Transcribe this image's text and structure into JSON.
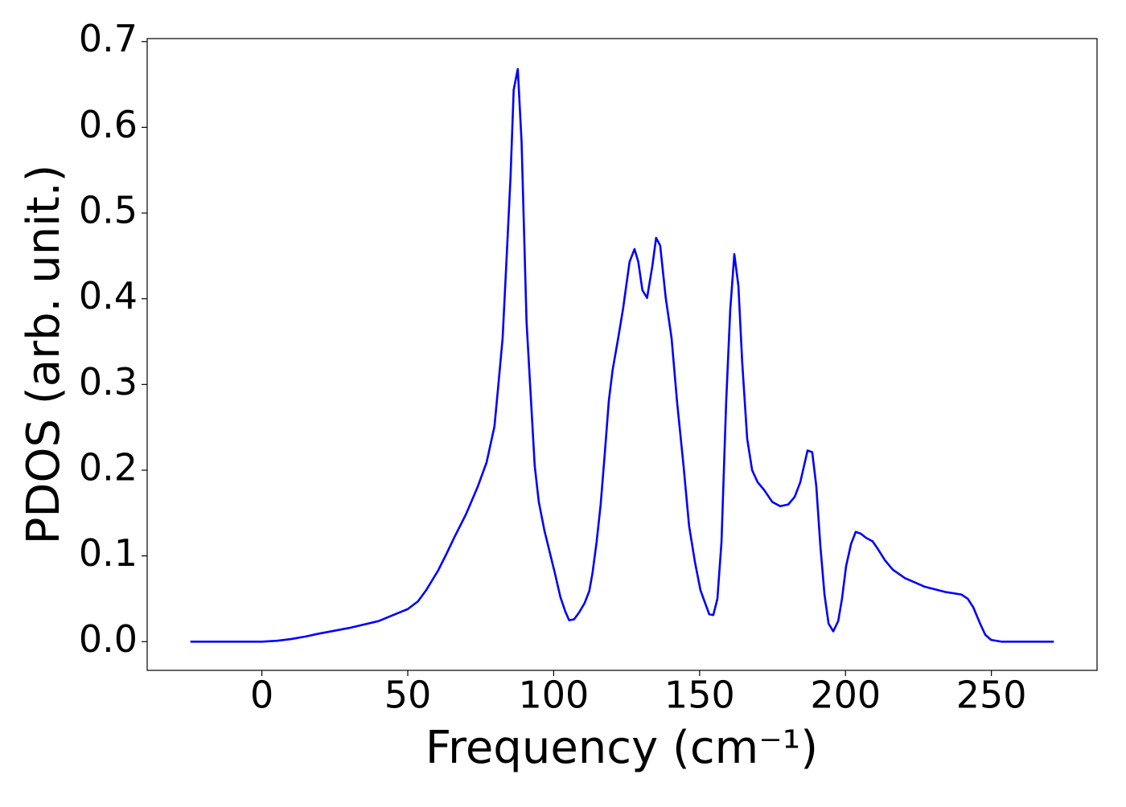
{
  "chart_data": {
    "type": "line",
    "xlabel": "Frequency (cm⁻¹)",
    "ylabel": "PDOS (arb. unit.)",
    "x": [
      -24.5,
      0,
      5.2,
      10,
      15,
      19,
      30,
      40,
      45,
      50,
      53.5,
      56.3,
      60.4,
      63.2,
      66,
      70,
      74,
      77,
      79.7,
      81,
      82.5,
      83.8,
      85.2,
      86.3,
      87.7,
      89,
      90.7,
      92.1,
      93.5,
      94.9,
      96.8,
      100.4,
      102.3,
      104,
      105.3,
      107,
      108.7,
      110.6,
      112.2,
      113.3,
      114.7,
      116.1,
      117.5,
      118.9,
      120.2,
      122.2,
      123.8,
      126,
      127.7,
      129,
      130.4,
      132,
      133.8,
      135.1,
      136.5,
      138.4,
      140.4,
      142.3,
      144.5,
      146.4,
      148.4,
      150.3,
      152,
      153.3,
      154.7,
      156.1,
      157.5,
      159.1,
      160.5,
      161.9,
      163.3,
      164.6,
      166.3,
      168,
      169.9,
      172.1,
      174.9,
      177.6,
      180.4,
      182.6,
      184.5,
      187,
      188.6,
      190,
      191.4,
      192.8,
      194.2,
      195.8,
      197.5,
      198.8,
      200.2,
      201.9,
      203.5,
      205.2,
      207.1,
      209.3,
      211.3,
      213.5,
      216.2,
      220.4,
      227.2,
      234.1,
      239.7,
      241.9,
      243.8,
      246,
      247.9,
      249.9,
      253.4,
      271.4
    ],
    "series": [
      {
        "color": "#0000ff",
        "values": [
          0,
          0,
          0.001,
          0.003,
          0.006,
          0.009,
          0.016,
          0.024,
          0.031,
          0.038,
          0.047,
          0.06,
          0.083,
          0.102,
          0.122,
          0.149,
          0.181,
          0.209,
          0.251,
          0.298,
          0.354,
          0.443,
          0.541,
          0.644,
          0.668,
          0.583,
          0.373,
          0.289,
          0.205,
          0.163,
          0.13,
          0.08,
          0.052,
          0.035,
          0.025,
          0.026,
          0.034,
          0.045,
          0.059,
          0.08,
          0.116,
          0.16,
          0.219,
          0.281,
          0.317,
          0.356,
          0.389,
          0.443,
          0.458,
          0.443,
          0.41,
          0.401,
          0.438,
          0.471,
          0.462,
          0.401,
          0.354,
          0.279,
          0.205,
          0.135,
          0.093,
          0.06,
          0.044,
          0.032,
          0.031,
          0.05,
          0.116,
          0.279,
          0.387,
          0.452,
          0.415,
          0.326,
          0.237,
          0.2,
          0.186,
          0.177,
          0.163,
          0.158,
          0.16,
          0.169,
          0.186,
          0.223,
          0.221,
          0.181,
          0.111,
          0.055,
          0.021,
          0.012,
          0.024,
          0.05,
          0.088,
          0.114,
          0.128,
          0.126,
          0.121,
          0.117,
          0.107,
          0.095,
          0.084,
          0.074,
          0.064,
          0.058,
          0.055,
          0.05,
          0.04,
          0.022,
          0.008,
          0.002,
          0,
          0
        ]
      }
    ],
    "xlim": [
      -39.3,
      286.2
    ],
    "xticks": [
      0,
      50,
      100,
      150,
      200,
      250
    ],
    "ylim": [
      -0.0335,
      0.7035
    ],
    "yticks": [
      {
        "value": 0,
        "label": "0.0"
      },
      0.1,
      0.2,
      0.3,
      0.4,
      0.5,
      0.6,
      0.7
    ]
  }
}
